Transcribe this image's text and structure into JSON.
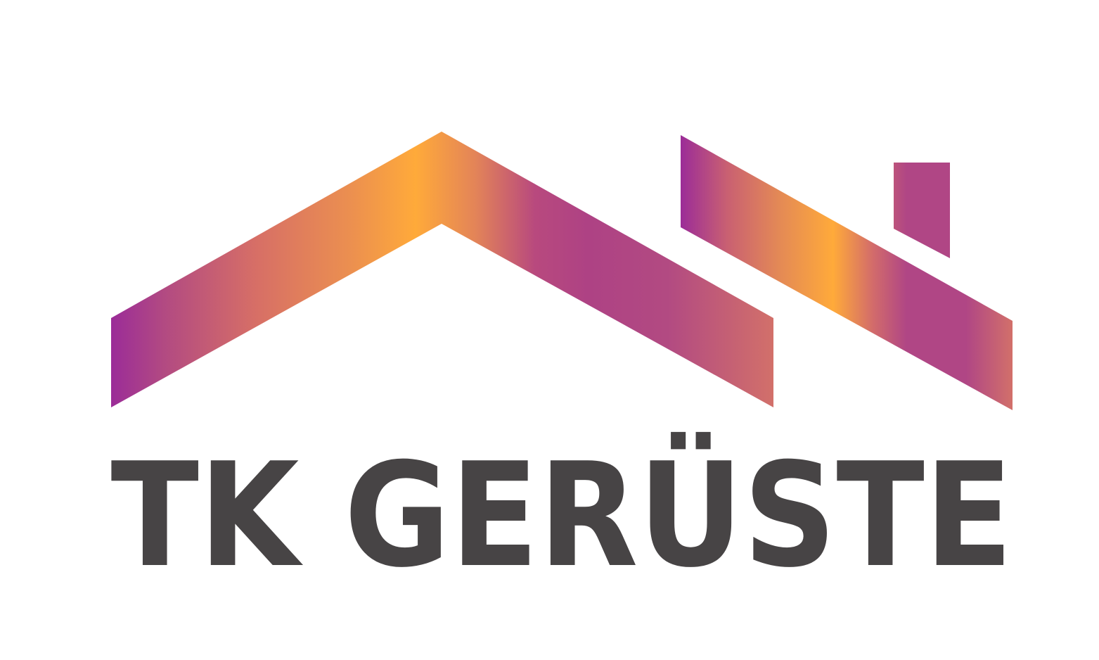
{
  "logo": {
    "company_name": "TK GERÜSTE",
    "colors": {
      "purple": "#9B2C98",
      "mauve": "#B24A82",
      "coral": "#D76F66",
      "orange": "#FFAA3A",
      "text": "#474445",
      "background": "#FFFFFF"
    },
    "icons": [
      "main-roof",
      "secondary-roof",
      "chimney"
    ]
  }
}
